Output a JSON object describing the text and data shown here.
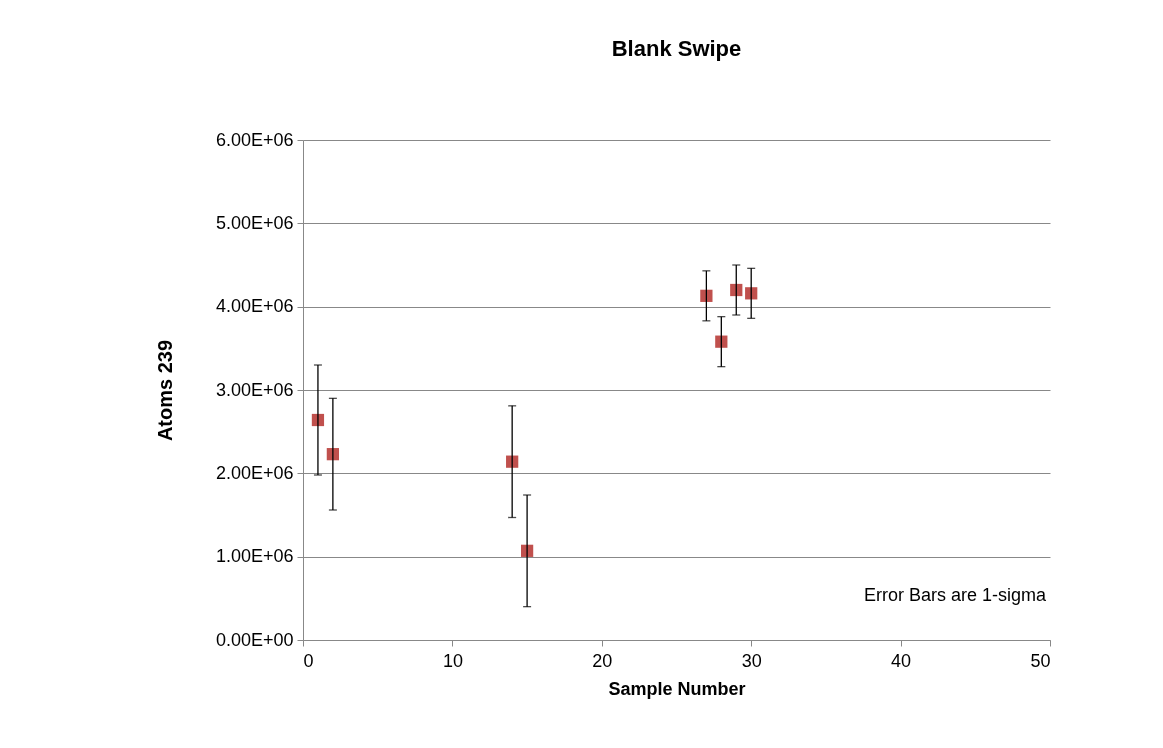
{
  "chart_data": {
    "type": "scatter",
    "title": "Blank Swipe",
    "xlabel": "Sample Number",
    "ylabel": "Atoms 239",
    "x": [
      1,
      2,
      14,
      15,
      27,
      28,
      29,
      30
    ],
    "series": [
      {
        "color": "#c0504d",
        "values": [
          2640000,
          2230000,
          2140000,
          1070000,
          4130000,
          3580000,
          4200000,
          4160000
        ],
        "errors": [
          660000,
          670000,
          670000,
          670000,
          300000,
          300000,
          300000,
          300000
        ]
      }
    ],
    "xlim": [
      0,
      50
    ],
    "xticks": [
      0,
      10,
      20,
      30,
      40,
      50
    ],
    "ylim": [
      0,
      6000000
    ],
    "yticks": [
      {
        "value": 0,
        "label": "0.00E+00"
      },
      {
        "value": 1000000,
        "label": "1.00E+06"
      },
      {
        "value": 2000000,
        "label": "2.00E+06"
      },
      {
        "value": 3000000,
        "label": "3.00E+06"
      },
      {
        "value": 4000000,
        "label": "4.00E+06"
      },
      {
        "value": 5000000,
        "label": "5.00E+06"
      },
      {
        "value": 6000000,
        "label": "6.00E+06"
      }
    ],
    "grid": "y",
    "marker": "square",
    "annotations": [
      "Error Bars are 1-sigma"
    ]
  }
}
